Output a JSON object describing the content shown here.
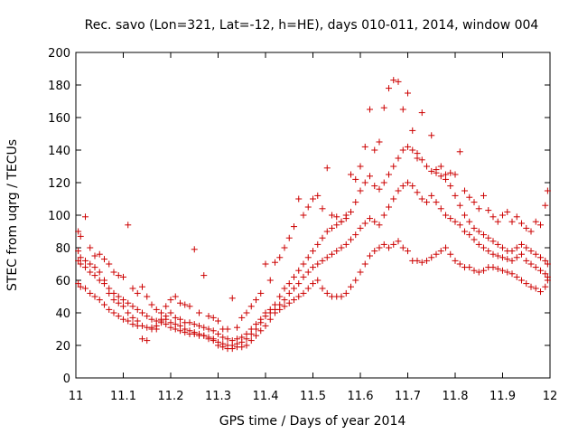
{
  "chart_data": {
    "type": "scatter",
    "title": "Rec. savo (Lon=321, Lat=-12, h=HE), days 010-011, 2014, window 004",
    "xlabel": "GPS time / Days of year 2014",
    "ylabel": "STEC from uqrg / TECUs",
    "xlim": [
      11,
      12
    ],
    "ylim": [
      0,
      200
    ],
    "x_ticks": [
      11,
      11.1,
      11.2,
      11.3,
      11.4,
      11.5,
      11.6,
      11.7,
      11.8,
      11.9,
      12
    ],
    "x_tick_labels": [
      "11",
      "11.1",
      "11.2",
      "11.3",
      "11.4",
      "11.5",
      "11.6",
      "11.7",
      "11.8",
      "11.9",
      "12"
    ],
    "y_ticks": [
      0,
      20,
      40,
      60,
      80,
      100,
      120,
      140,
      160,
      180,
      200
    ],
    "y_tick_labels": [
      "0",
      "20",
      "40",
      "60",
      "80",
      "100",
      "120",
      "140",
      "160",
      "180",
      "200"
    ],
    "grid": false,
    "marker": "+",
    "color": "#cc0000",
    "series": [
      {
        "x": [
          11.005,
          11.01,
          11.02,
          11.03,
          11.04,
          11.05,
          11.06,
          11.07,
          11.08,
          11.09,
          11.1,
          11.11,
          11.12,
          11.13,
          11.14,
          11.15,
          11.16,
          11.17,
          11.18,
          11.19,
          11.2,
          11.21,
          11.22,
          11.23,
          11.24,
          11.25,
          11.26,
          11.27,
          11.28,
          11.29,
          11.3,
          11.31,
          11.32,
          11.33,
          11.34,
          11.35,
          11.36,
          11.37,
          11.38,
          11.39,
          11.4,
          11.41,
          11.42,
          11.43,
          11.44,
          11.45,
          11.46,
          11.47,
          11.48,
          11.49,
          11.5,
          11.51,
          11.52,
          11.53,
          11.54,
          11.55,
          11.56,
          11.57,
          11.58,
          11.59,
          11.6,
          11.61,
          11.62,
          11.63,
          11.64,
          11.65,
          11.66,
          11.67,
          11.68,
          11.69,
          11.7,
          11.71,
          11.72,
          11.73,
          11.74,
          11.75,
          11.76,
          11.77,
          11.78,
          11.79,
          11.8,
          11.81,
          11.82,
          11.83,
          11.84,
          11.85,
          11.86,
          11.87,
          11.88,
          11.89,
          11.9,
          11.91,
          11.92,
          11.93,
          11.94,
          11.95,
          11.96,
          11.97,
          11.98,
          11.99,
          11.995
        ],
        "y": [
          90,
          87,
          99,
          80,
          75,
          76,
          73,
          70,
          65,
          63,
          62,
          94,
          55,
          52,
          56,
          50,
          45,
          42,
          40,
          44,
          48,
          50,
          46,
          45,
          44,
          79,
          40,
          63,
          38,
          37,
          35,
          30,
          30,
          49,
          31,
          37,
          40,
          44,
          48,
          52,
          70,
          60,
          71,
          74,
          80,
          86,
          93,
          110,
          100,
          105,
          110,
          112,
          104,
          129,
          100,
          99,
          96,
          100,
          125,
          122,
          130,
          142,
          165,
          140,
          145,
          166,
          178,
          183,
          182,
          165,
          175,
          152,
          135,
          163,
          130,
          149,
          128,
          130,
          125,
          126,
          125,
          139,
          115,
          111,
          108,
          104,
          112,
          103,
          99,
          96,
          100,
          102,
          96,
          99,
          95,
          92,
          90,
          96,
          94,
          106,
          115
        ]
      },
      {
        "x": [
          11.005,
          11.01,
          11.02,
          11.03,
          11.04,
          11.05,
          11.06,
          11.07,
          11.08,
          11.09,
          11.1,
          11.11,
          11.12,
          11.13,
          11.14,
          11.15,
          11.16,
          11.17,
          11.18,
          11.19,
          11.2,
          11.21,
          11.22,
          11.23,
          11.24,
          11.25,
          11.26,
          11.27,
          11.28,
          11.29,
          11.3,
          11.31,
          11.32,
          11.33,
          11.34,
          11.35,
          11.36,
          11.37,
          11.38,
          11.39,
          11.4,
          11.41,
          11.42,
          11.43,
          11.44,
          11.45,
          11.46,
          11.47,
          11.48,
          11.49,
          11.5,
          11.51,
          11.52,
          11.53,
          11.54,
          11.55,
          11.56,
          11.57,
          11.58,
          11.59,
          11.6,
          11.61,
          11.62,
          11.63,
          11.64,
          11.65,
          11.66,
          11.67,
          11.68,
          11.69,
          11.7,
          11.71,
          11.72,
          11.73,
          11.74,
          11.75,
          11.76,
          11.77,
          11.78,
          11.79,
          11.8,
          11.81,
          11.82,
          11.83,
          11.84,
          11.85,
          11.86,
          11.87,
          11.88,
          11.89,
          11.9,
          11.91,
          11.92,
          11.93,
          11.94,
          11.95,
          11.96,
          11.97,
          11.98,
          11.99,
          11.995
        ],
        "y": [
          78,
          74,
          72,
          70,
          68,
          65,
          60,
          55,
          52,
          50,
          48,
          46,
          44,
          42,
          40,
          38,
          36,
          35,
          36,
          38,
          40,
          37,
          36,
          34,
          34,
          33,
          32,
          31,
          30,
          29,
          27,
          25,
          24,
          23,
          24,
          25,
          27,
          30,
          33,
          36,
          40,
          42,
          45,
          50,
          55,
          58,
          62,
          66,
          70,
          74,
          78,
          82,
          86,
          90,
          92,
          94,
          96,
          98,
          102,
          108,
          115,
          120,
          124,
          118,
          116,
          120,
          125,
          130,
          135,
          140,
          142,
          140,
          138,
          134,
          130,
          127,
          126,
          124,
          122,
          118,
          112,
          106,
          100,
          96,
          92,
          90,
          88,
          86,
          84,
          82,
          80,
          78,
          78,
          80,
          82,
          80,
          78,
          76,
          74,
          72,
          70
        ]
      },
      {
        "x": [
          11.005,
          11.01,
          11.02,
          11.03,
          11.04,
          11.05,
          11.06,
          11.07,
          11.08,
          11.09,
          11.1,
          11.11,
          11.12,
          11.13,
          11.14,
          11.15,
          11.16,
          11.17,
          11.18,
          11.19,
          11.2,
          11.21,
          11.22,
          11.23,
          11.24,
          11.25,
          11.26,
          11.27,
          11.28,
          11.29,
          11.3,
          11.31,
          11.32,
          11.33,
          11.34,
          11.35,
          11.36,
          11.37,
          11.38,
          11.39,
          11.4,
          11.41,
          11.42,
          11.43,
          11.44,
          11.45,
          11.46,
          11.47,
          11.48,
          11.49,
          11.5,
          11.51,
          11.52,
          11.53,
          11.54,
          11.55,
          11.56,
          11.57,
          11.58,
          11.59,
          11.6,
          11.61,
          11.62,
          11.63,
          11.64,
          11.65,
          11.66,
          11.67,
          11.68,
          11.69,
          11.7,
          11.71,
          11.72,
          11.73,
          11.74,
          11.75,
          11.76,
          11.77,
          11.78,
          11.79,
          11.8,
          11.81,
          11.82,
          11.83,
          11.84,
          11.85,
          11.86,
          11.87,
          11.88,
          11.89,
          11.9,
          11.91,
          11.92,
          11.93,
          11.94,
          11.95,
          11.96,
          11.97,
          11.98,
          11.99,
          11.995
        ],
        "y": [
          72,
          70,
          68,
          65,
          63,
          60,
          58,
          52,
          48,
          46,
          44,
          40,
          37,
          35,
          32,
          31,
          30,
          32,
          34,
          33,
          31,
          30,
          29,
          28,
          27,
          27,
          26,
          26,
          25,
          24,
          22,
          21,
          20,
          20,
          21,
          22,
          24,
          27,
          30,
          34,
          38,
          40,
          42,
          45,
          48,
          52,
          55,
          58,
          62,
          65,
          68,
          70,
          72,
          74,
          76,
          78,
          80,
          82,
          85,
          88,
          92,
          95,
          98,
          96,
          94,
          100,
          105,
          110,
          115,
          118,
          120,
          118,
          114,
          110,
          108,
          112,
          108,
          104,
          100,
          98,
          96,
          94,
          90,
          88,
          85,
          82,
          80,
          78,
          76,
          75,
          74,
          73,
          72,
          74,
          76,
          72,
          70,
          68,
          66,
          64,
          62
        ]
      },
      {
        "x": [
          11.005,
          11.01,
          11.02,
          11.03,
          11.04,
          11.05,
          11.06,
          11.07,
          11.08,
          11.09,
          11.1,
          11.11,
          11.12,
          11.13,
          11.14,
          11.15,
          11.16,
          11.17,
          11.18,
          11.19,
          11.2,
          11.21,
          11.22,
          11.23,
          11.24,
          11.25,
          11.26,
          11.27,
          11.28,
          11.29,
          11.3,
          11.31,
          11.32,
          11.33,
          11.34,
          11.35,
          11.36,
          11.37,
          11.38,
          11.39,
          11.4,
          11.41,
          11.42,
          11.43,
          11.44,
          11.45,
          11.46,
          11.47,
          11.48,
          11.49,
          11.5,
          11.51,
          11.52,
          11.53,
          11.54,
          11.55,
          11.56,
          11.57,
          11.58,
          11.59,
          11.6,
          11.61,
          11.62,
          11.63,
          11.64,
          11.65,
          11.66,
          11.67,
          11.68,
          11.69,
          11.7,
          11.71,
          11.72,
          11.73,
          11.74,
          11.75,
          11.76,
          11.77,
          11.78,
          11.79,
          11.8,
          11.81,
          11.82,
          11.83,
          11.84,
          11.85,
          11.86,
          11.87,
          11.88,
          11.89,
          11.9,
          11.91,
          11.92,
          11.93,
          11.94,
          11.95,
          11.96,
          11.97,
          11.98,
          11.99,
          11.995
        ],
        "y": [
          58,
          56,
          55,
          52,
          50,
          48,
          45,
          42,
          40,
          38,
          36,
          35,
          33,
          32,
          24,
          23,
          31,
          30,
          35,
          36,
          34,
          33,
          32,
          30,
          29,
          28,
          27,
          26,
          24,
          23,
          20,
          19,
          18,
          18,
          19,
          19,
          20,
          23,
          26,
          29,
          32,
          36,
          40,
          42,
          44,
          46,
          48,
          50,
          52,
          55,
          58,
          60,
          55,
          52,
          50,
          50,
          50,
          52,
          56,
          60,
          65,
          70,
          75,
          78,
          80,
          82,
          80,
          82,
          84,
          80,
          78,
          72,
          72,
          71,
          72,
          74,
          76,
          78,
          80,
          76,
          72,
          70,
          68,
          68,
          66,
          65,
          66,
          68,
          68,
          67,
          66,
          65,
          64,
          62,
          60,
          58,
          56,
          55,
          53,
          56,
          60
        ]
      }
    ]
  }
}
